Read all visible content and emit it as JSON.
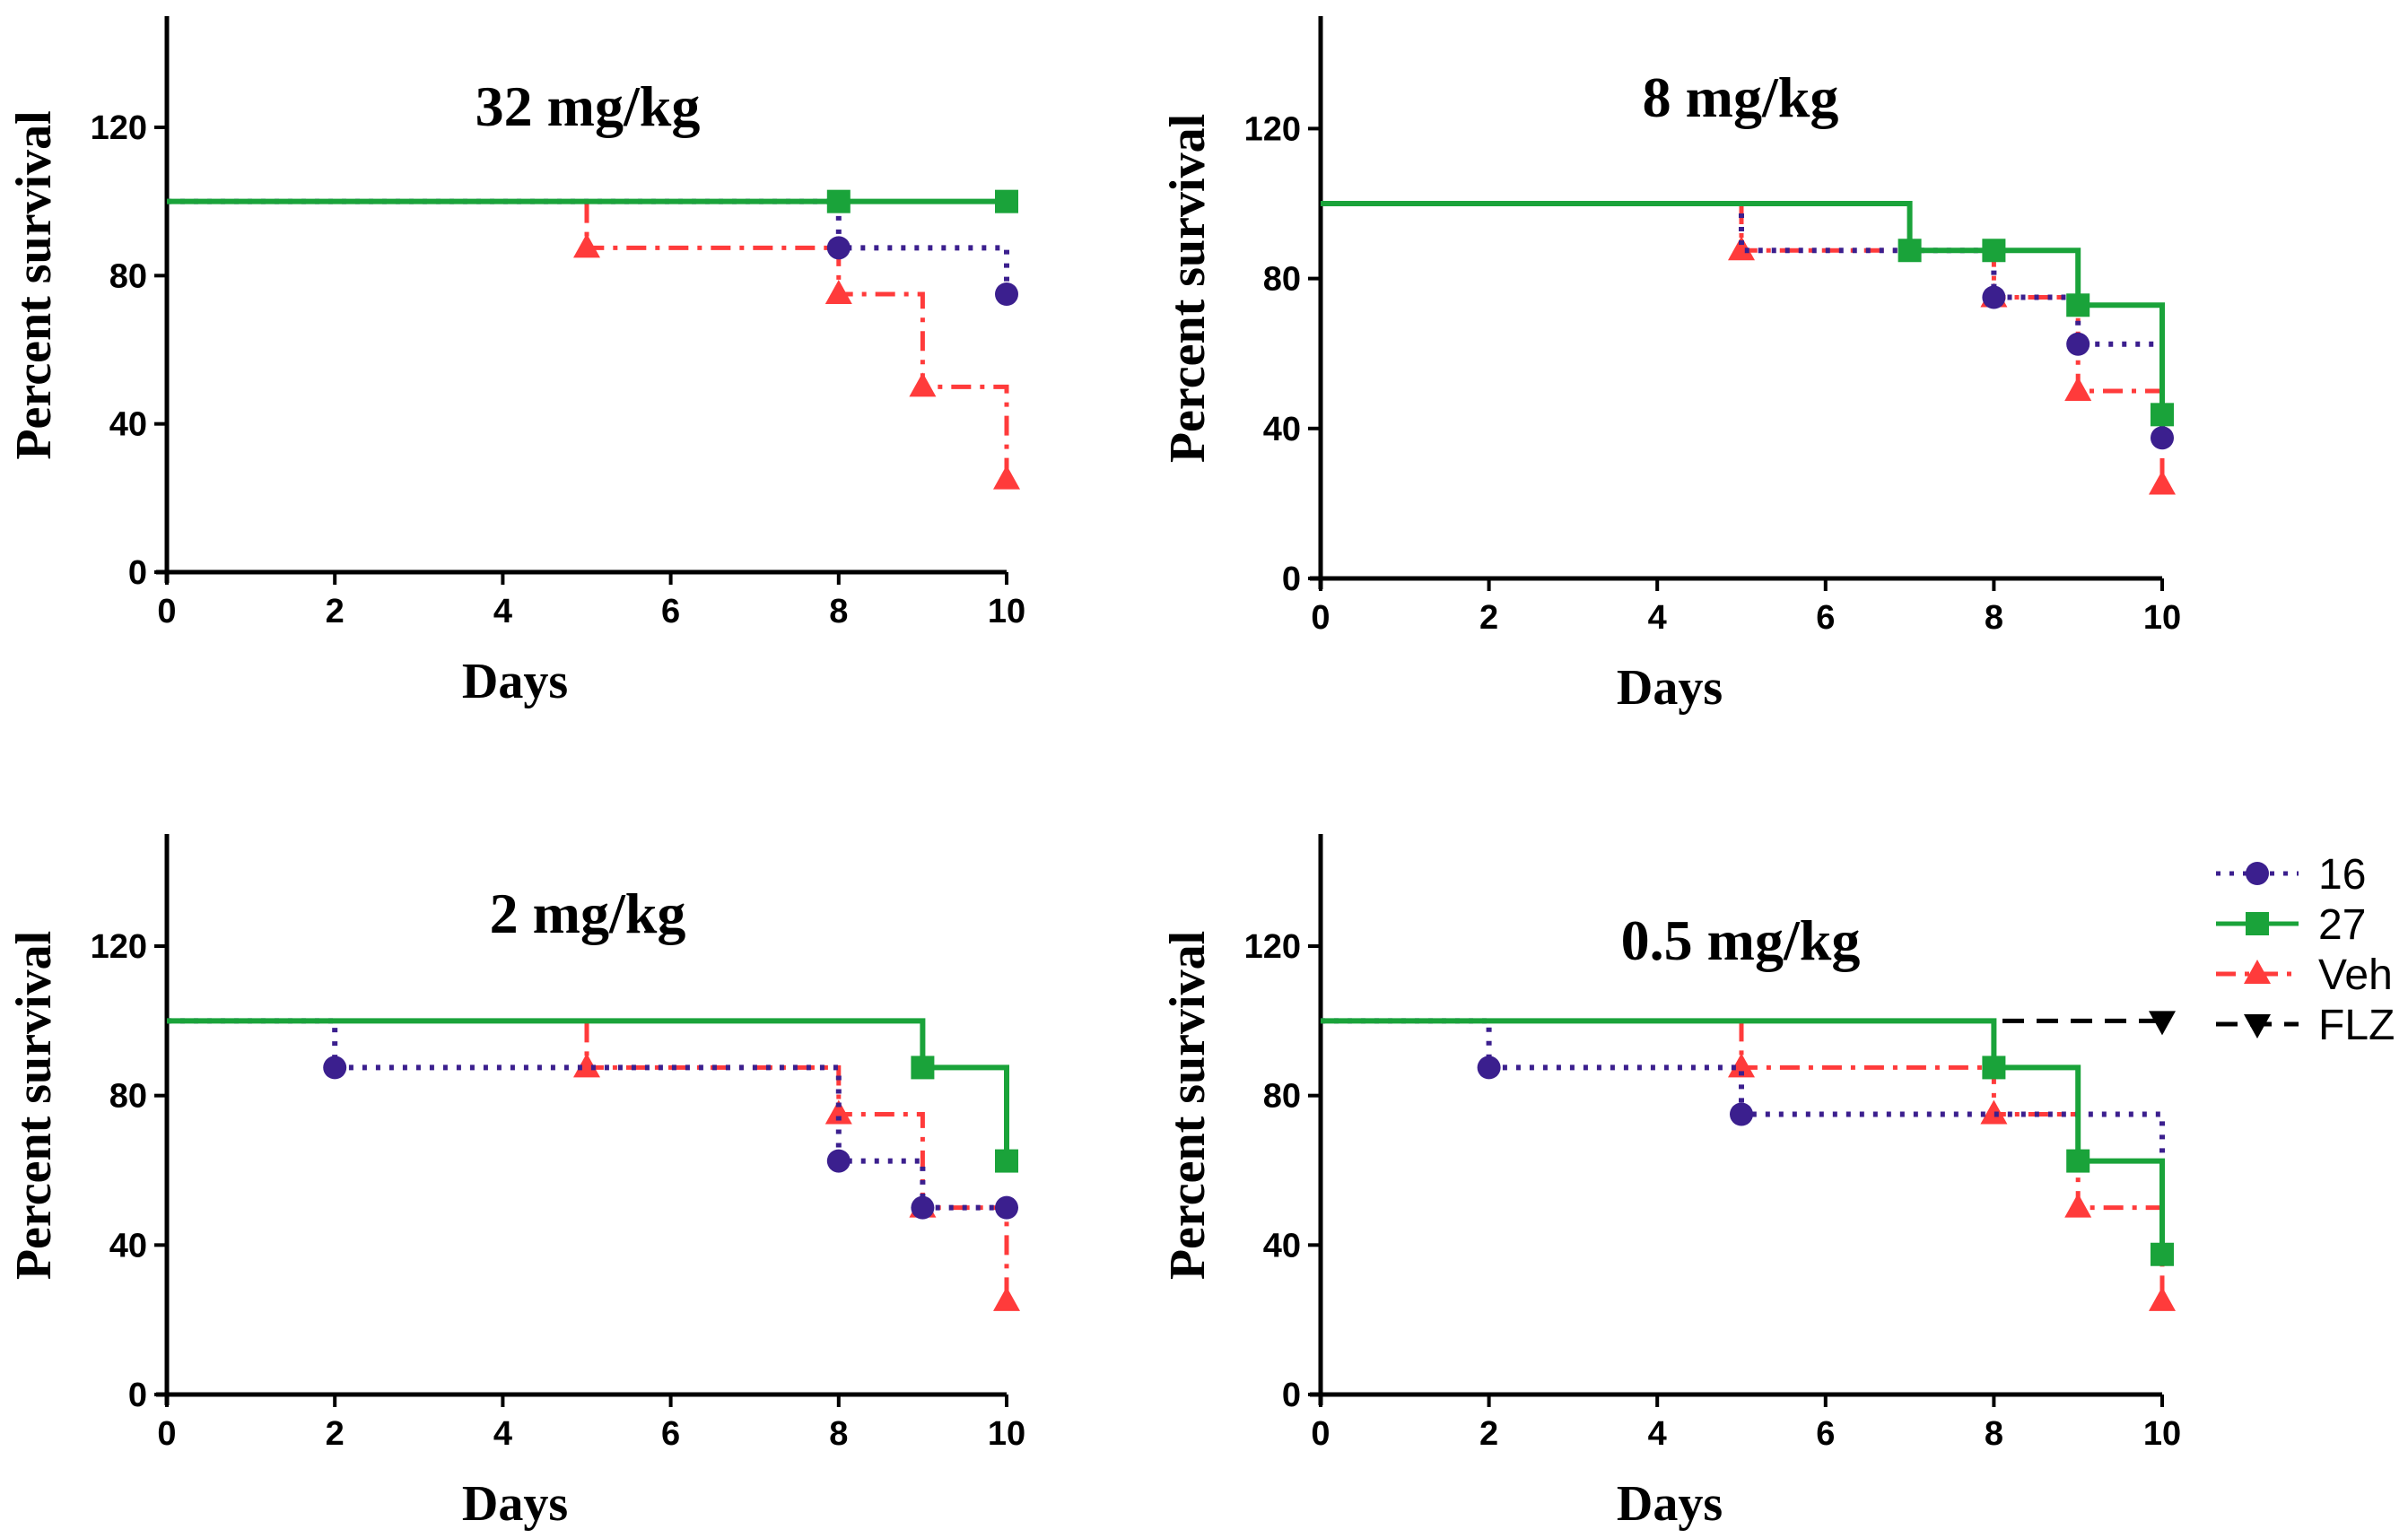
{
  "chart_data": [
    {
      "type": "line",
      "subtype": "kaplan-meier step",
      "title": "32 mg/kg",
      "xlabel": "Days",
      "ylabel": "Percent survival",
      "xlim": [
        0,
        10
      ],
      "ylim": [
        0,
        150
      ],
      "xticks": [
        0,
        2,
        4,
        6,
        8,
        10
      ],
      "yticks": [
        0,
        40,
        80,
        120
      ],
      "series": [
        {
          "name": "27",
          "steps": [
            [
              0,
              100
            ],
            [
              10,
              100
            ]
          ],
          "markers": [
            [
              8,
              100
            ],
            [
              10,
              100
            ]
          ]
        },
        {
          "name": "16",
          "steps": [
            [
              0,
              100
            ],
            [
              8,
              87.5
            ],
            [
              10,
              75
            ]
          ],
          "markers": [
            [
              8,
              87.5
            ],
            [
              10,
              75
            ]
          ]
        },
        {
          "name": "Veh",
          "steps": [
            [
              0,
              100
            ],
            [
              5,
              87.5
            ],
            [
              8,
              75
            ],
            [
              9,
              50
            ],
            [
              10,
              25
            ]
          ],
          "markers": [
            [
              5,
              87.5
            ],
            [
              8,
              75
            ],
            [
              9,
              50
            ],
            [
              10,
              25
            ]
          ]
        }
      ]
    },
    {
      "type": "line",
      "subtype": "kaplan-meier step",
      "title": "8 mg/kg",
      "xlabel": "Days",
      "ylabel": "Percent survival",
      "xlim": [
        0,
        10
      ],
      "ylim": [
        0,
        150
      ],
      "xticks": [
        0,
        2,
        4,
        6,
        8,
        10
      ],
      "yticks": [
        0,
        40,
        80,
        120
      ],
      "series": [
        {
          "name": "27",
          "steps": [
            [
              0,
              100
            ],
            [
              7,
              87.5
            ],
            [
              9,
              72.9
            ],
            [
              10,
              43.7
            ]
          ],
          "markers": [
            [
              7,
              87.5
            ],
            [
              8,
              87.5
            ],
            [
              9,
              72.9
            ],
            [
              10,
              43.7
            ]
          ]
        },
        {
          "name": "16",
          "steps": [
            [
              0,
              100
            ],
            [
              5,
              87.5
            ],
            [
              8,
              75
            ],
            [
              9,
              62.5
            ],
            [
              10,
              37.5
            ]
          ],
          "markers": [
            [
              8,
              75
            ],
            [
              9,
              62.5
            ],
            [
              10,
              37.5
            ]
          ]
        },
        {
          "name": "Veh",
          "steps": [
            [
              0,
              100
            ],
            [
              5,
              87.5
            ],
            [
              8,
              75
            ],
            [
              9,
              50
            ],
            [
              10,
              25
            ]
          ],
          "markers": [
            [
              5,
              87.5
            ],
            [
              8,
              75
            ],
            [
              9,
              50
            ],
            [
              10,
              25
            ]
          ]
        }
      ]
    },
    {
      "type": "line",
      "subtype": "kaplan-meier step",
      "title": "2 mg/kg",
      "xlabel": "Days",
      "ylabel": "Percent survival",
      "xlim": [
        0,
        10
      ],
      "ylim": [
        0,
        150
      ],
      "xticks": [
        0,
        2,
        4,
        6,
        8,
        10
      ],
      "yticks": [
        0,
        40,
        80,
        120
      ],
      "series": [
        {
          "name": "27",
          "steps": [
            [
              0,
              100
            ],
            [
              9,
              87.5
            ],
            [
              10,
              62.5
            ]
          ],
          "markers": [
            [
              9,
              87.5
            ],
            [
              10,
              62.5
            ]
          ]
        },
        {
          "name": "16",
          "steps": [
            [
              0,
              100
            ],
            [
              2,
              87.5
            ],
            [
              8,
              62.5
            ],
            [
              9,
              50
            ],
            [
              10,
              50
            ]
          ],
          "markers": [
            [
              2,
              87.5
            ],
            [
              8,
              62.5
            ],
            [
              9,
              50
            ],
            [
              10,
              50
            ]
          ]
        },
        {
          "name": "Veh",
          "steps": [
            [
              0,
              100
            ],
            [
              5,
              87.5
            ],
            [
              8,
              75
            ],
            [
              9,
              50
            ],
            [
              10,
              25
            ]
          ],
          "markers": [
            [
              5,
              87.5
            ],
            [
              8,
              75
            ],
            [
              9,
              50
            ],
            [
              10,
              25
            ]
          ]
        }
      ]
    },
    {
      "type": "line",
      "subtype": "kaplan-meier step",
      "title": "0.5 mg/kg",
      "xlabel": "Days",
      "ylabel": "Percent survival",
      "xlim": [
        0,
        10
      ],
      "ylim": [
        0,
        150
      ],
      "xticks": [
        0,
        2,
        4,
        6,
        8,
        10
      ],
      "yticks": [
        0,
        40,
        80,
        120
      ],
      "series": [
        {
          "name": "FLZ",
          "steps": [
            [
              0,
              100
            ],
            [
              10,
              100
            ]
          ],
          "markers": [
            [
              10,
              100
            ]
          ]
        },
        {
          "name": "27",
          "steps": [
            [
              0,
              100
            ],
            [
              8,
              87.5
            ],
            [
              9,
              62.5
            ],
            [
              10,
              37.5
            ]
          ],
          "markers": [
            [
              8,
              87.5
            ],
            [
              9,
              62.5
            ],
            [
              10,
              37.5
            ]
          ]
        },
        {
          "name": "16",
          "steps": [
            [
              0,
              100
            ],
            [
              2,
              87.5
            ],
            [
              5,
              75
            ],
            [
              10,
              37.5
            ]
          ],
          "markers": [
            [
              2,
              87.5
            ],
            [
              5,
              75
            ]
          ]
        },
        {
          "name": "Veh",
          "steps": [
            [
              0,
              100
            ],
            [
              5,
              87.5
            ],
            [
              8,
              75
            ],
            [
              9,
              50
            ],
            [
              10,
              25
            ]
          ],
          "markers": [
            [
              5,
              87.5
            ],
            [
              8,
              75
            ],
            [
              9,
              50
            ],
            [
              10,
              25
            ]
          ]
        }
      ]
    }
  ],
  "legend": {
    "placement": "right of bottom-right panel",
    "entries": [
      {
        "name": "16",
        "color": "#3b1f8e",
        "dash": "dotted",
        "marker": "circle"
      },
      {
        "name": "27",
        "color": "#1aa33a",
        "dash": "solid",
        "marker": "square"
      },
      {
        "name": "Veh",
        "color": "#ff3b3b",
        "dash": "dash-dot",
        "marker": "triangle-up"
      },
      {
        "name": "FLZ",
        "color": "#000000",
        "dash": "dashed",
        "marker": "triangle-down"
      }
    ]
  }
}
